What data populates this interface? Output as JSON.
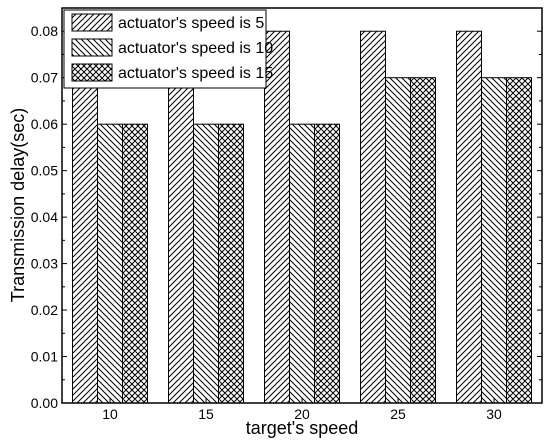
{
  "chart_data": {
    "type": "bar",
    "categories": [
      "10",
      "15",
      "20",
      "25",
      "30"
    ],
    "series": [
      {
        "name": "actuator's speed is 5",
        "values": [
          0.08,
          0.08,
          0.08,
          0.08,
          0.08
        ]
      },
      {
        "name": "actuator's speed is 10",
        "values": [
          0.06,
          0.06,
          0.06,
          0.07,
          0.07
        ]
      },
      {
        "name": "actuator's speed is 15",
        "values": [
          0.06,
          0.06,
          0.06,
          0.07,
          0.07
        ]
      }
    ],
    "xlabel": "target's speed",
    "ylabel": "Transmission delay(sec)",
    "ylim": [
      0,
      0.085
    ],
    "yticks": [
      "0.00",
      "0.01",
      "0.02",
      "0.03",
      "0.04",
      "0.05",
      "0.06",
      "0.07",
      "0.08"
    ],
    "legend_position": "top-left",
    "grid": false,
    "colors": {
      "bar_fill": "#ffffff",
      "hatch": "#000000",
      "axis": "#000000"
    },
    "hatch_patterns": [
      "diagonal-forward",
      "diagonal-backward",
      "crosshatch"
    ]
  }
}
